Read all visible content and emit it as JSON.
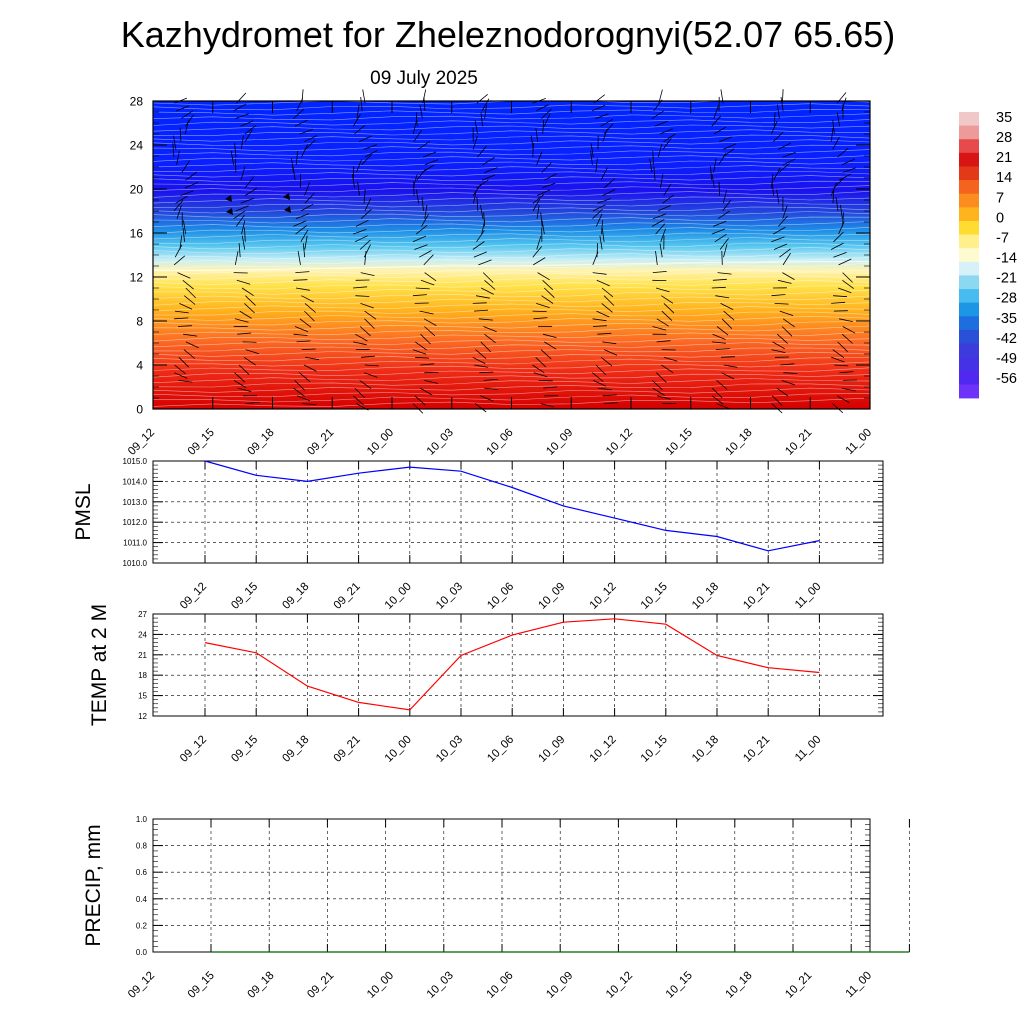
{
  "header": {
    "title": "Kazhydromet for Zheleznodorognyi(52.07 65.65)",
    "date": "09 July 2025"
  },
  "chart_data": [
    {
      "type": "heatmap",
      "name": "vertical-cross-section",
      "title": "",
      "ylabel": "",
      "ylim": [
        0,
        28
      ],
      "yticks": [
        0,
        4,
        8,
        12,
        16,
        20,
        24,
        28
      ],
      "x_labels": [
        "09_12",
        "09_15",
        "09_18",
        "09_21",
        "10_00",
        "10_03",
        "10_06",
        "10_09",
        "10_12",
        "10_15",
        "10_18",
        "10_21",
        "11_00"
      ],
      "wind_barbs": true,
      "freezing_level_y": [
        12.6,
        12.6,
        12.7,
        12.8,
        12.9,
        13.0,
        13.0,
        13.1,
        13.2,
        13.3,
        13.3,
        13.4,
        13.4
      ],
      "colorbar": {
        "ticks": [
          "35",
          "28",
          "21",
          "14",
          "7",
          "0",
          "-7",
          "-14",
          "-21",
          "-28",
          "-35",
          "-42",
          "-49",
          "-56"
        ]
      }
    },
    {
      "type": "line",
      "name": "pmsl",
      "ylabel": "PMSL",
      "ylim": [
        1010.0,
        1015.0
      ],
      "yticks": [
        "1010.0",
        "1011.0",
        "1012.0",
        "1013.0",
        "1014.0",
        "1015.0"
      ],
      "categories": [
        "09_12",
        "09_15",
        "09_18",
        "09_21",
        "10_00",
        "10_03",
        "10_06",
        "10_09",
        "10_12",
        "10_15",
        "10_18",
        "10_21",
        "11_00"
      ],
      "series": [
        {
          "values": [
            1015.0,
            1014.3,
            1014.0,
            1014.4,
            1014.7,
            1014.5,
            1013.7,
            1012.8,
            1012.2,
            1011.6,
            1011.3,
            1010.6,
            1011.1
          ],
          "color": "#0000ff"
        }
      ],
      "grid": true
    },
    {
      "type": "line",
      "name": "temp2m",
      "ylabel": "TEMP at 2 M",
      "ylim": [
        12,
        27
      ],
      "yticks": [
        "12",
        "15",
        "18",
        "21",
        "24",
        "27"
      ],
      "categories": [
        "09_12",
        "09_15",
        "09_18",
        "09_21",
        "10_00",
        "10_03",
        "10_06",
        "10_09",
        "10_12",
        "10_15",
        "10_18",
        "10_21",
        "11_00"
      ],
      "series": [
        {
          "values": [
            22.8,
            21.3,
            16.4,
            14.0,
            12.9,
            20.9,
            23.9,
            25.8,
            26.3,
            25.5,
            20.9,
            19.1,
            18.4
          ],
          "color": "#ff0000"
        }
      ],
      "grid": true
    },
    {
      "type": "line",
      "name": "precip",
      "ylabel": "PRECIP, mm",
      "ylim": [
        0.0,
        1.0
      ],
      "yticks": [
        "0.0",
        "0.2",
        "0.4",
        "0.6",
        "0.8",
        "1.0"
      ],
      "categories": [
        "09_12",
        "09_15",
        "09_18",
        "09_21",
        "10_00",
        "10_03",
        "10_06",
        "10_09",
        "10_12",
        "10_15",
        "10_18",
        "10_21",
        "11_00"
      ],
      "series": [
        {
          "values": [
            0,
            0,
            0,
            0,
            0,
            0,
            0,
            0,
            0,
            0,
            0,
            0,
            0
          ],
          "color": "#006400"
        }
      ],
      "grid": true
    }
  ]
}
